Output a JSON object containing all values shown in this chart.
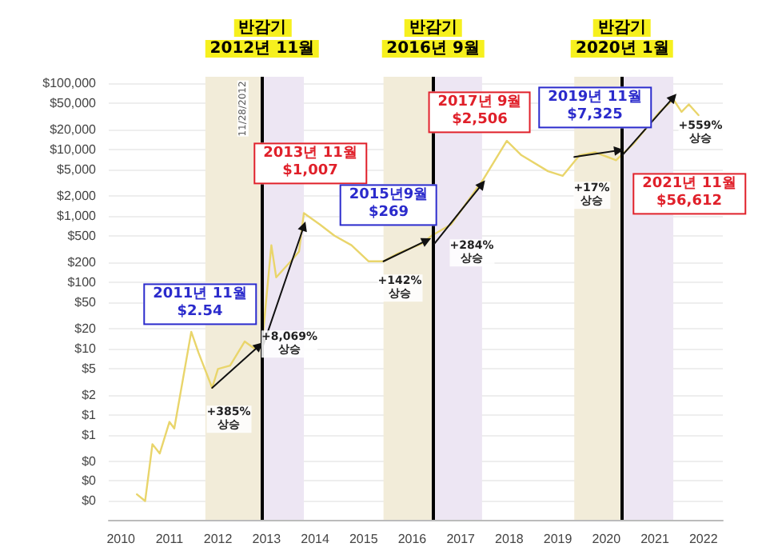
{
  "chart_data": {
    "type": "line",
    "x": [
      2010.33,
      2010.5,
      2010.65,
      2010.8,
      2011.0,
      2011.1,
      2011.45,
      2011.6,
      2011.88,
      2012.0,
      2012.25,
      2012.55,
      2012.75,
      2012.91,
      2013.1,
      2013.2,
      2013.5,
      2013.67,
      2013.77,
      2014.1,
      2014.4,
      2014.75,
      2015.1,
      2015.41,
      2015.7,
      2016.2,
      2016.4,
      2016.8,
      2017.45,
      2017.95,
      2018.25,
      2018.8,
      2019.1,
      2019.45,
      2019.77,
      2020.2,
      2020.55,
      2021.1,
      2021.38,
      2021.55,
      2021.7,
      2021.9
    ],
    "series": [
      {
        "color": "#e9d56b",
        "marker": "none",
        "values": [
          0.063,
          0.05,
          0.36,
          0.26,
          0.78,
          0.62,
          17.8,
          8.6,
          2.54,
          4.9,
          5.5,
          12.7,
          10,
          12,
          360,
          118,
          206,
          290,
          1100,
          740,
          500,
          360,
          206,
          206,
          269,
          380,
          500,
          740,
          3400,
          13500,
          8200,
          4700,
          4000,
          8200,
          9100,
          6900,
          12000,
          37000,
          57000,
          37000,
          48000,
          33000
        ]
      },
      {
        "color": "#111111",
        "marker": "triangle",
        "x": [
          2011.88,
          2012.85
        ],
        "values": [
          2.54,
          11
        ]
      },
      {
        "color": "#111111",
        "marker": "triangle",
        "x": [
          2012.91,
          2013.77
        ],
        "values": [
          10,
          700
        ]
      },
      {
        "color": "#111111",
        "marker": "triangle",
        "x": [
          2015.41,
          2016.3
        ],
        "values": [
          206,
          425
        ]
      },
      {
        "color": "#111111",
        "marker": "triangle",
        "x": [
          2016.46,
          2017.44
        ],
        "values": [
          380,
          3000
        ]
      },
      {
        "color": "#111111",
        "marker": "triangle",
        "x": [
          2019.34,
          2020.26
        ],
        "values": [
          7700,
          9700
        ]
      },
      {
        "color": "#111111",
        "marker": "triangle",
        "x": [
          2020.33,
          2021.38
        ],
        "values": [
          8200,
          61000
        ]
      }
    ],
    "log": "y",
    "xlim": [
      2009.75,
      2022.4
    ],
    "xticks": [
      2010,
      2011,
      2012,
      2013,
      2014,
      2015,
      2016,
      2017,
      2018,
      2019,
      2020,
      2021,
      2022
    ],
    "ylim": [
      0.026,
      125000
    ],
    "yticks": [
      {
        "value": 100000,
        "label": "$100,000"
      },
      {
        "value": 50000,
        "label": "$50,000"
      },
      {
        "value": 20000,
        "label": "$20,000"
      },
      {
        "value": 10000,
        "label": "$10,000"
      },
      {
        "value": 5000,
        "label": "$5,000"
      },
      {
        "value": 2000,
        "label": "$2,000"
      },
      {
        "value": 1000,
        "label": "$1,000"
      },
      {
        "value": 500,
        "label": "$500"
      },
      {
        "value": 200,
        "label": "$200"
      },
      {
        "value": 100,
        "label": "$100"
      },
      {
        "value": 50,
        "label": "$50"
      },
      {
        "value": 20,
        "label": "$20"
      },
      {
        "value": 10,
        "label": "$10"
      },
      {
        "value": 5,
        "label": "$5"
      },
      {
        "value": 2,
        "label": "$2"
      },
      {
        "value": 1,
        "label": "$1"
      },
      {
        "value": 0.5,
        "label": "$1"
      },
      {
        "value": 0.2,
        "label": "$0"
      },
      {
        "value": 0.1,
        "label": "$0"
      },
      {
        "value": 0.05,
        "label": "$0"
      }
    ],
    "grid": "y",
    "bands": [
      {
        "axis": "x",
        "from": 2011.74,
        "to": 2012.91,
        "color": "#f2ecd9"
      },
      {
        "axis": "x",
        "from": 2012.91,
        "to": 2013.77,
        "color": "#ede6f3"
      },
      {
        "axis": "x",
        "from": 2015.41,
        "to": 2016.43,
        "color": "#f2ecd9"
      },
      {
        "axis": "x",
        "from": 2016.43,
        "to": 2017.44,
        "color": "#ede6f3"
      },
      {
        "axis": "x",
        "from": 2019.34,
        "to": 2020.33,
        "color": "#f2ecd9"
      },
      {
        "axis": "x",
        "from": 2020.33,
        "to": 2021.38,
        "color": "#ede6f3"
      }
    ],
    "ref_lines": [
      {
        "axis": "x",
        "value": 2012.91,
        "label": "반감기\n2012년 11월",
        "color": "#000000"
      },
      {
        "axis": "x",
        "value": 2016.43,
        "label": "반감기\n2016년 9월",
        "color": "#000000"
      },
      {
        "axis": "x",
        "value": 2020.33,
        "label": "반감기\n2020년 1월",
        "color": "#000000"
      }
    ],
    "annotations": [
      "2011년 11월\n$2.54",
      "2013년 11월\n$1,007",
      "2015년9월\n$269",
      "2017년 9월\n$2,506",
      "2019년 11월\n$7,325",
      "2021년 11월\n$56,612",
      "+385%\n상승",
      "+8,069%\n상승",
      "+142%\n상승",
      "+284%\n상승",
      "+17%\n상승",
      "+559%\n상승",
      "11/28/2012"
    ]
  }
}
